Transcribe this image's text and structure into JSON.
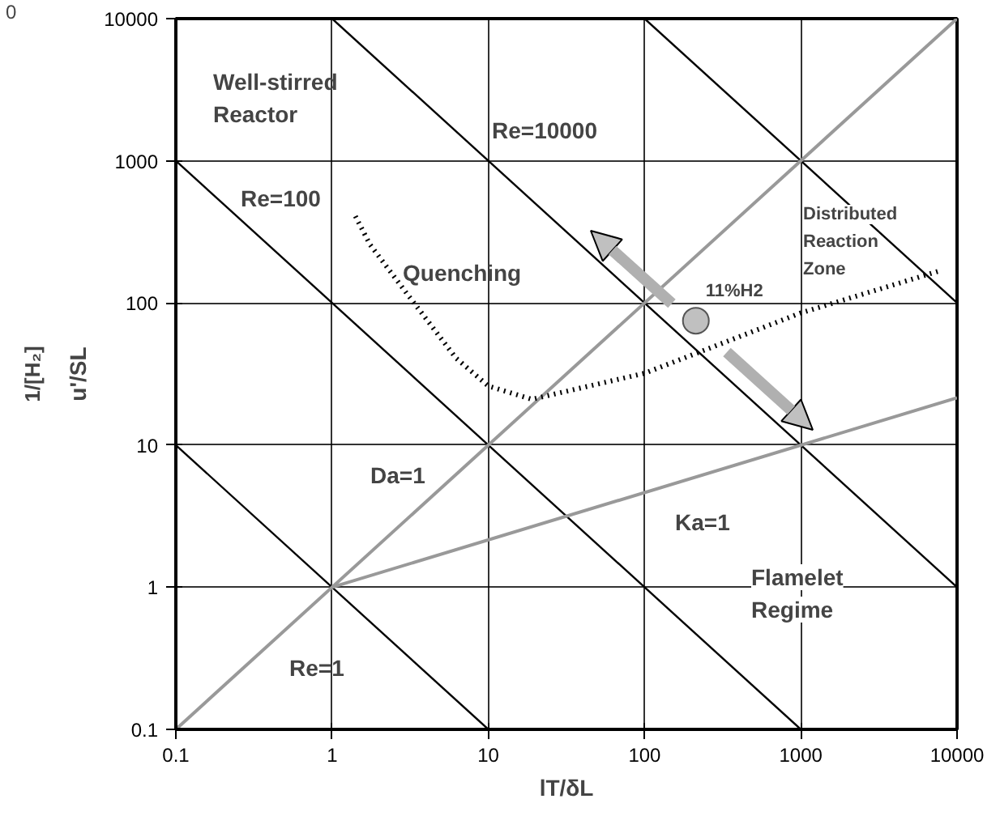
{
  "chart_data": {
    "type": "line",
    "xlabel": "lT/δL",
    "ylabel": "u'/SL",
    "xlim": [
      0.1,
      10000
    ],
    "ylim": [
      0.1,
      10000
    ],
    "xticks": [
      0.1,
      1,
      10,
      100,
      1000,
      10000
    ],
    "yticks": [
      0.1,
      1,
      10,
      100,
      1000,
      10000
    ],
    "log": "xy",
    "grid": true,
    "series": [
      {
        "color": "#000000",
        "x": [
          0.1,
          10
        ],
        "values": [
          10,
          0.1
        ]
      },
      {
        "color": "#000000",
        "x": [
          0.1,
          1000
        ],
        "values": [
          1000,
          0.1
        ]
      },
      {
        "color": "#000000",
        "x": [
          1,
          10000
        ],
        "values": [
          10000,
          1
        ]
      },
      {
        "color": "#000000",
        "x": [
          100,
          10000
        ],
        "values": [
          10000,
          100
        ]
      },
      {
        "color": "#999999",
        "x": [
          0.1,
          10000
        ],
        "values": [
          0.1,
          10000
        ]
      },
      {
        "color": "#999999",
        "x": [
          1,
          10000
        ],
        "values": [
          1,
          21.5
        ]
      },
      {
        "color": "#000000",
        "line_style": "dotted",
        "x": [
          1.41,
          1.75,
          3,
          6.2,
          10,
          19,
          100,
          1000,
          8000
        ],
        "values": [
          407,
          257,
          117,
          41,
          26,
          21,
          32,
          85,
          170
        ]
      },
      {
        "type": "scatter",
        "marker": "circle",
        "color": "#c0c0c0",
        "x": [
          213
        ],
        "values": [
          75
        ]
      }
    ],
    "annotations": [
      "Well-stirred\nReactor",
      "Re=10000",
      "Re=100",
      "Quenching",
      "Distributed\nReaction\nZone",
      {
        "text": "11%H2",
        "x": 213,
        "y": 75
      },
      "Da=1",
      "Ka=1",
      "Flamelet\nRegime",
      "Re=1",
      "1/[H₂]",
      "0"
    ]
  }
}
